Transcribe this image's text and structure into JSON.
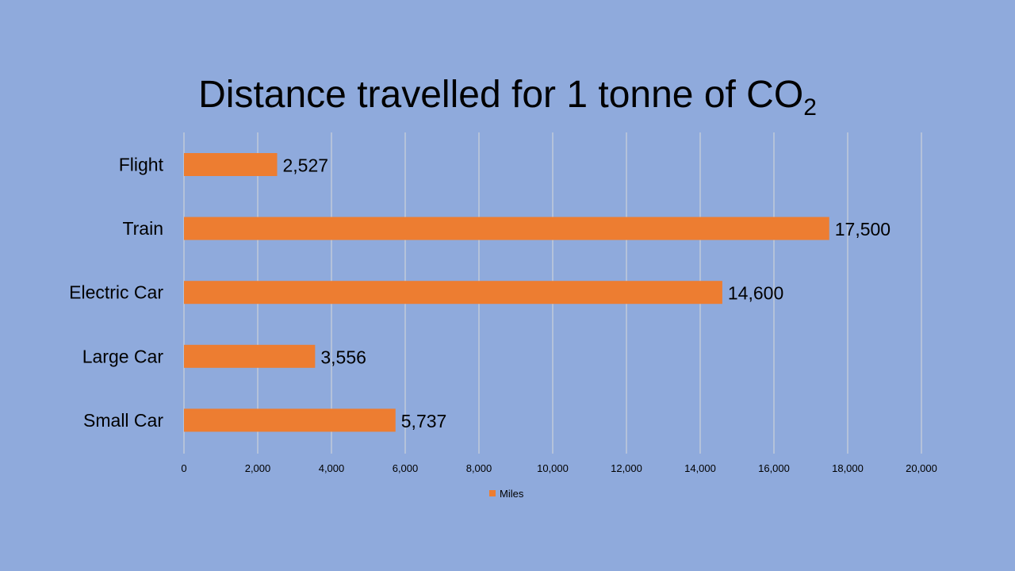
{
  "title": {
    "main": "Distance travelled for 1 tonne of CO",
    "subscript": "2"
  },
  "chart_data": {
    "type": "bar",
    "orientation": "horizontal",
    "categories": [
      "Flight",
      "Train",
      "Electric Car",
      "Large Car",
      "Small Car"
    ],
    "series": [
      {
        "name": "Miles",
        "values": [
          2527,
          17500,
          14600,
          3556,
          5737
        ],
        "labels": [
          "2,527",
          "17,500",
          "14,600",
          "3,556",
          "5,737"
        ],
        "color": "#ed7d31"
      }
    ],
    "xlim": [
      0,
      20000
    ],
    "ticks": [
      0,
      2000,
      4000,
      6000,
      8000,
      10000,
      12000,
      14000,
      16000,
      18000,
      20000
    ],
    "tick_labels": [
      "0",
      "2,000",
      "4,000",
      "6,000",
      "8,000",
      "10,000",
      "12,000",
      "14,000",
      "16,000",
      "18,000",
      "20,000"
    ],
    "xlabel": "",
    "ylabel": "",
    "grid": true,
    "legend": "bottom"
  },
  "colors": {
    "background": "#8faadc",
    "gridline": "#d9d9d9",
    "bar": "#ed7d31"
  }
}
